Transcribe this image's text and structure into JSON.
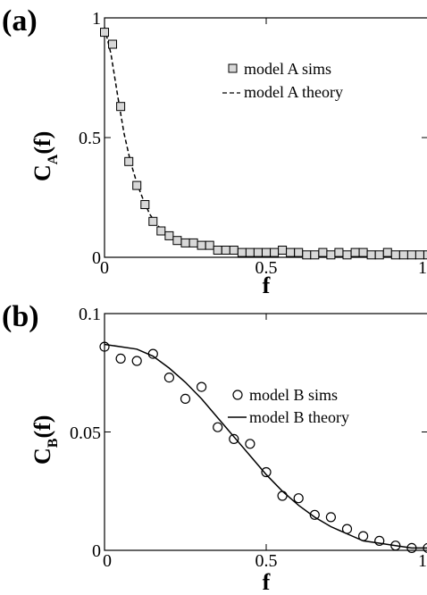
{
  "chart_data": [
    {
      "panel_label": "(a)",
      "type": "scatter",
      "xlabel": "f",
      "ylabel": "C_A(f)",
      "ylabel_main": "C",
      "ylabel_sub": "A",
      "ylabel_tail": "(f)",
      "xlim": [
        0,
        1
      ],
      "ylim": [
        0,
        1
      ],
      "xticks": [
        0,
        0.5,
        1
      ],
      "xtick_labels": [
        "0",
        "0.5",
        "1"
      ],
      "yticks": [
        0,
        0.5,
        1
      ],
      "ytick_labels": [
        "0",
        "0.5",
        "1"
      ],
      "grid": false,
      "legend_position": "top-right",
      "series": [
        {
          "name": "model A sims",
          "marker": "square",
          "x": [
            0.0,
            0.025,
            0.05,
            0.075,
            0.1,
            0.125,
            0.15,
            0.175,
            0.2,
            0.225,
            0.25,
            0.275,
            0.3,
            0.325,
            0.35,
            0.375,
            0.4,
            0.425,
            0.45,
            0.475,
            0.5,
            0.525,
            0.55,
            0.575,
            0.6,
            0.625,
            0.65,
            0.675,
            0.7,
            0.725,
            0.75,
            0.775,
            0.8,
            0.825,
            0.85,
            0.875,
            0.9,
            0.925,
            0.95,
            0.975,
            1.0
          ],
          "y": [
            0.94,
            0.89,
            0.63,
            0.4,
            0.3,
            0.22,
            0.15,
            0.11,
            0.09,
            0.07,
            0.06,
            0.06,
            0.05,
            0.05,
            0.03,
            0.03,
            0.03,
            0.02,
            0.02,
            0.02,
            0.02,
            0.02,
            0.03,
            0.02,
            0.02,
            0.01,
            0.01,
            0.02,
            0.01,
            0.02,
            0.01,
            0.02,
            0.02,
            0.01,
            0.01,
            0.02,
            0.01,
            0.01,
            0.01,
            0.01,
            0.01
          ]
        },
        {
          "name": "model A theory",
          "line_style": "dashed",
          "x": [
            0.0,
            0.02,
            0.04,
            0.06,
            0.08,
            0.1,
            0.12,
            0.14,
            0.16,
            0.18,
            0.2,
            0.25,
            0.3,
            0.35,
            0.4,
            0.5,
            0.6,
            0.7,
            0.8,
            0.9,
            1.0
          ],
          "y": [
            0.96,
            0.85,
            0.68,
            0.52,
            0.4,
            0.31,
            0.24,
            0.18,
            0.14,
            0.11,
            0.09,
            0.06,
            0.045,
            0.035,
            0.03,
            0.022,
            0.018,
            0.015,
            0.013,
            0.011,
            0.01
          ]
        }
      ]
    },
    {
      "panel_label": "(b)",
      "type": "scatter",
      "xlabel": "f",
      "ylabel": "C_B(f)",
      "ylabel_main": "C",
      "ylabel_sub": "B",
      "ylabel_tail": "(f)",
      "xlim": [
        0,
        1
      ],
      "ylim": [
        0,
        0.1
      ],
      "xticks": [
        0,
        0.5,
        1
      ],
      "xtick_labels": [
        "0",
        "0.5",
        "1"
      ],
      "yticks": [
        0,
        0.05,
        0.1
      ],
      "ytick_labels": [
        "0",
        "0.05",
        "0.1"
      ],
      "grid": false,
      "legend_position": "top-right",
      "series": [
        {
          "name": "model B sims",
          "marker": "circle",
          "x": [
            0.0,
            0.05,
            0.1,
            0.15,
            0.2,
            0.25,
            0.3,
            0.35,
            0.4,
            0.45,
            0.5,
            0.55,
            0.6,
            0.65,
            0.7,
            0.75,
            0.8,
            0.85,
            0.9,
            0.95,
            1.0
          ],
          "y": [
            0.086,
            0.081,
            0.08,
            0.083,
            0.073,
            0.064,
            0.069,
            0.052,
            0.047,
            0.045,
            0.033,
            0.023,
            0.022,
            0.015,
            0.014,
            0.009,
            0.006,
            0.004,
            0.002,
            0.001,
            0.001
          ]
        },
        {
          "name": "model B theory",
          "line_style": "solid",
          "x": [
            0.0,
            0.05,
            0.1,
            0.15,
            0.2,
            0.25,
            0.3,
            0.35,
            0.4,
            0.45,
            0.5,
            0.55,
            0.6,
            0.65,
            0.7,
            0.75,
            0.8,
            0.85,
            0.9,
            0.95,
            1.0
          ],
          "y": [
            0.087,
            0.086,
            0.085,
            0.082,
            0.077,
            0.071,
            0.064,
            0.056,
            0.048,
            0.04,
            0.032,
            0.025,
            0.019,
            0.014,
            0.01,
            0.007,
            0.004,
            0.003,
            0.002,
            0.001,
            0.001
          ]
        }
      ]
    }
  ]
}
